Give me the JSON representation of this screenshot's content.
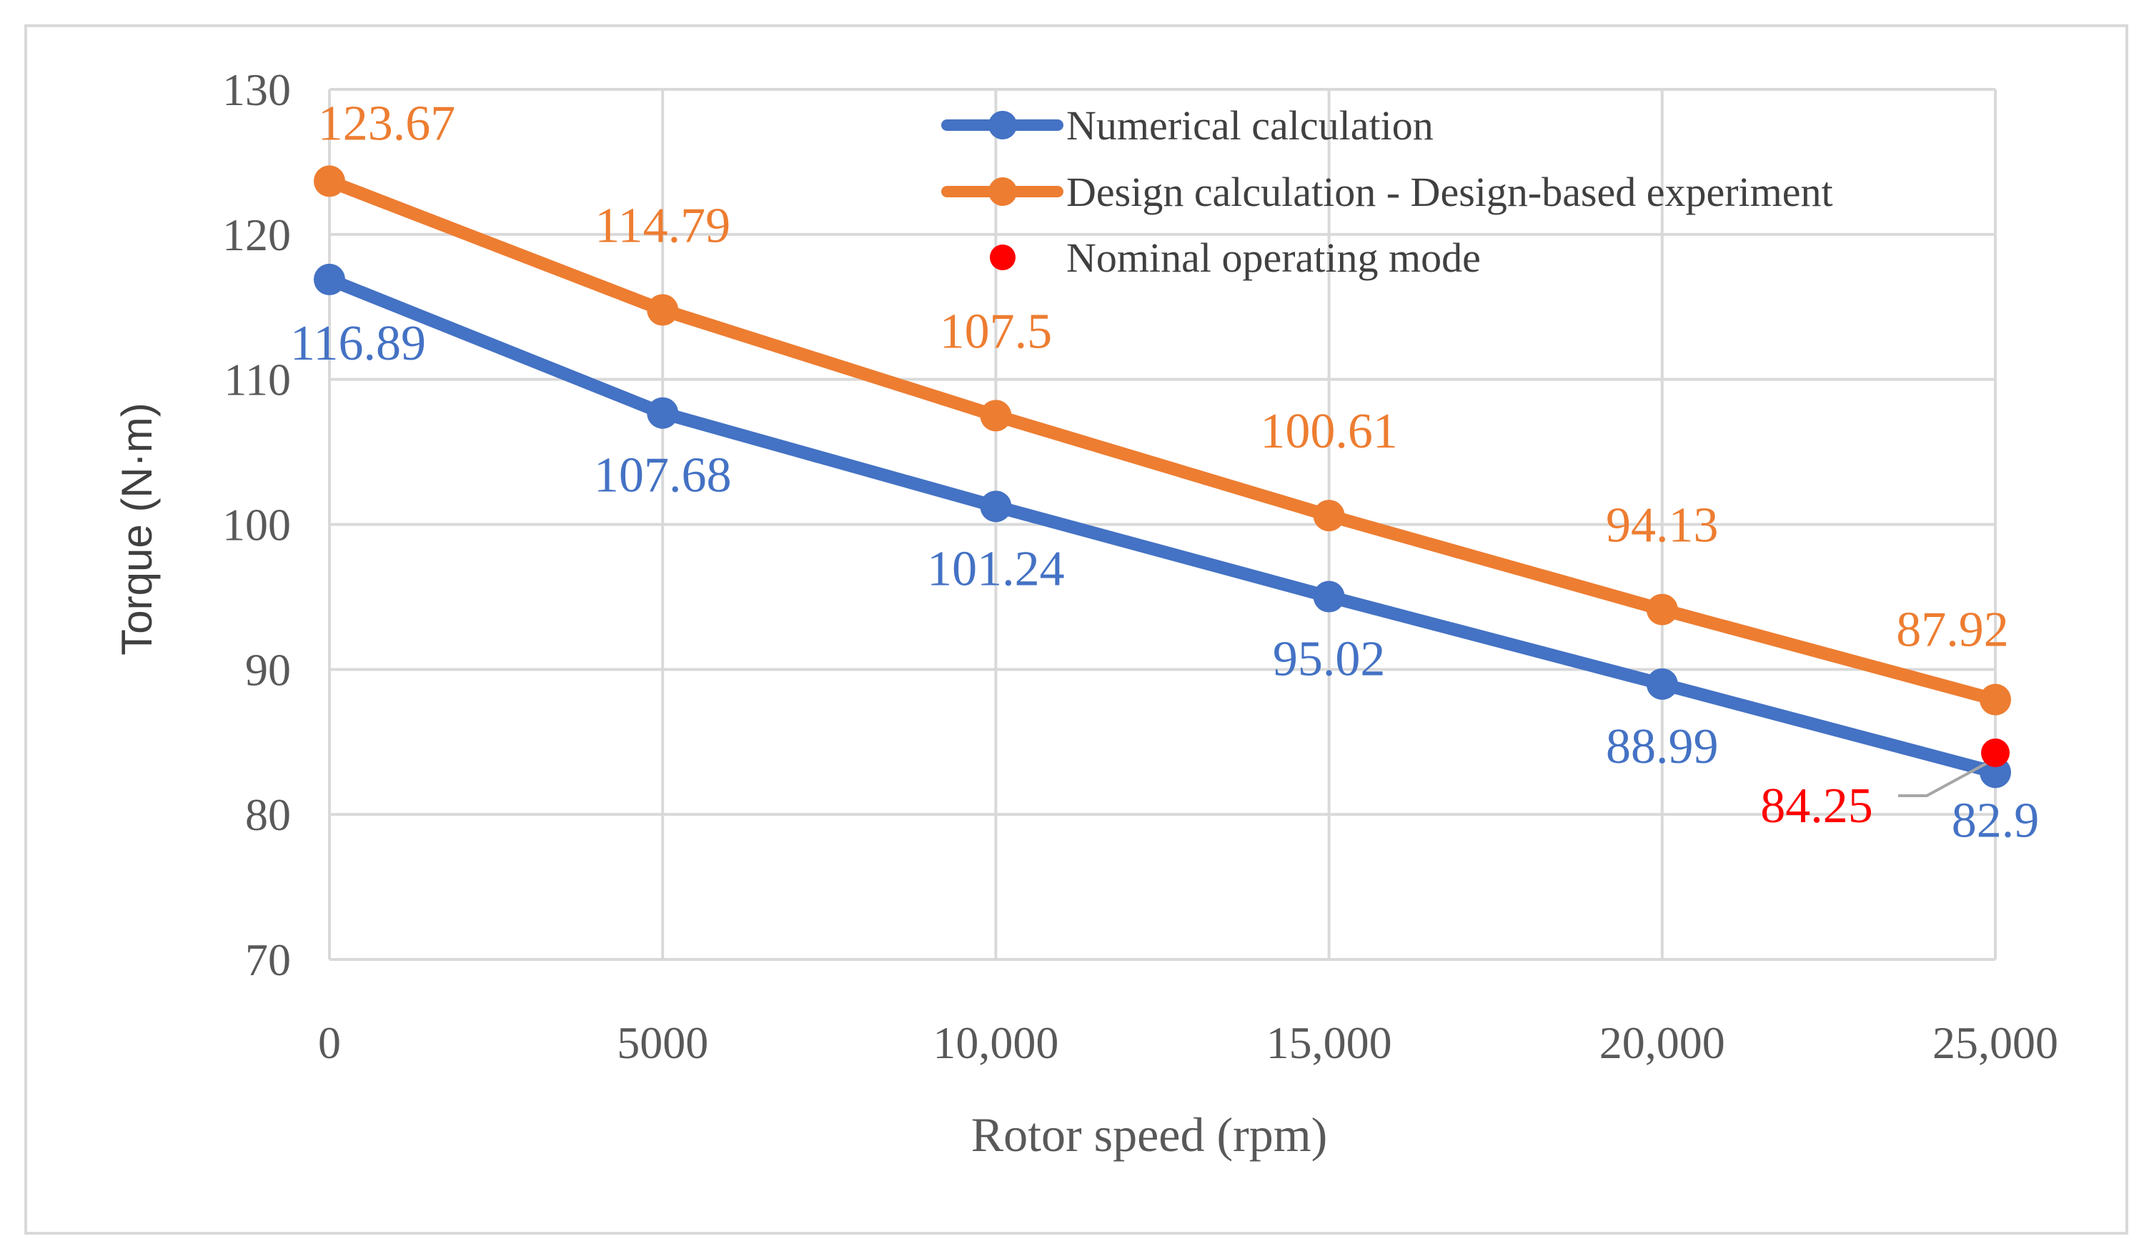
{
  "chart_data": {
    "type": "line",
    "xlabel": "Rotor speed (rpm)",
    "ylabel": "Torque (N·m)",
    "x": [
      0,
      5000,
      10000,
      15000,
      20000,
      25000
    ],
    "x_tick_labels": [
      "0",
      "5000",
      "10,000",
      "15,000",
      "20,000",
      "25,000"
    ],
    "y_ticks": [
      70,
      80,
      90,
      100,
      110,
      120,
      130
    ],
    "ylim": [
      70,
      130
    ],
    "xlim": [
      0,
      25000
    ],
    "grid": true,
    "legend_position": "top-right",
    "series": [
      {
        "name": "Numerical calculation",
        "color": "#4472C4",
        "values": [
          116.89,
          107.68,
          101.24,
          95.02,
          88.99,
          82.9
        ],
        "labels": [
          "116.89",
          "107.68",
          "101.24",
          "95.02",
          "88.99",
          "82.9"
        ]
      },
      {
        "name": "Design calculation - Design-based experiment",
        "color": "#ED7D31",
        "values": [
          123.67,
          114.79,
          107.5,
          100.61,
          94.13,
          87.92
        ],
        "labels": [
          "123.67",
          "114.79",
          "107.5",
          "100.61",
          "94.13",
          "87.92"
        ]
      },
      {
        "name": "Nominal operating mode",
        "color": "#FF0000",
        "type": "scatter",
        "points": [
          {
            "x": 25000,
            "y": 84.25,
            "label": "84.25"
          }
        ]
      }
    ]
  }
}
